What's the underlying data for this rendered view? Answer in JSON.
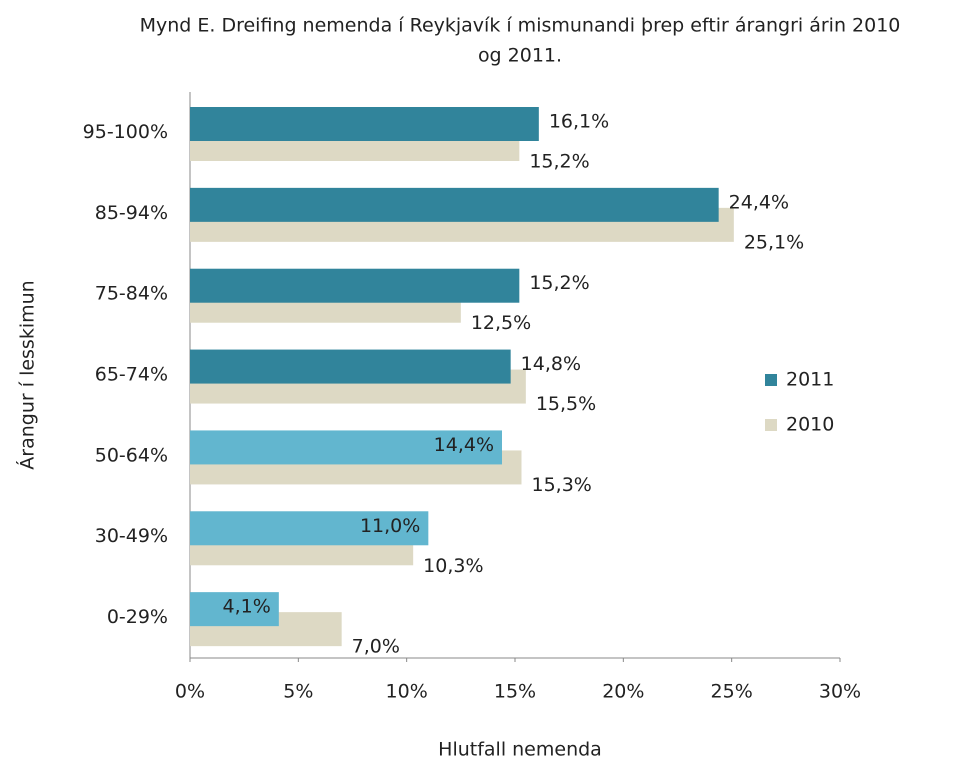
{
  "chart_data": {
    "type": "hbar",
    "title": [
      "Mynd E. Dreifing nemenda í Reykjavík í mismunandi þrep eftir árangri árin 2010",
      "og 2011."
    ],
    "x_label": "Hlutfall nemenda",
    "y_label": "Árangur í lesskimun",
    "categories": [
      "95-100%",
      "85-94%",
      "75-84%",
      "65-74%",
      "50-64%",
      "30-49%",
      "0-29%"
    ],
    "series": [
      {
        "name": "2011",
        "color": "#31849b",
        "colors": [
          "#31849b",
          "#31849b",
          "#31849b",
          "#31849b",
          "#62b6cf",
          "#62b6cf",
          "#62b6cf"
        ],
        "values": [
          16.1,
          24.4,
          15.2,
          14.8,
          14.4,
          11.0,
          4.1
        ],
        "value_labels": [
          "16,1%",
          "24,4%",
          "15,2%",
          "14,8%",
          "14,4%",
          "11,0%",
          "4,1%"
        ]
      },
      {
        "name": "2010",
        "color": "#ddd9c4",
        "values": [
          15.2,
          25.1,
          12.5,
          15.5,
          15.3,
          10.3,
          7.0
        ],
        "value_labels": [
          "15,2%",
          "25,1%",
          "12,5%",
          "15,5%",
          "15,3%",
          "10,3%",
          "7,0%"
        ]
      }
    ],
    "xlim": [
      0,
      30
    ],
    "xticks": [
      {
        "value": 0,
        "label": "0%"
      },
      {
        "value": 5,
        "label": "5%"
      },
      {
        "value": 10,
        "label": "10%"
      },
      {
        "value": 15,
        "label": "15%"
      },
      {
        "value": 20,
        "label": "20%"
      },
      {
        "value": 25,
        "label": "25%"
      },
      {
        "value": 30,
        "label": "30%"
      }
    ],
    "legend": "right"
  }
}
